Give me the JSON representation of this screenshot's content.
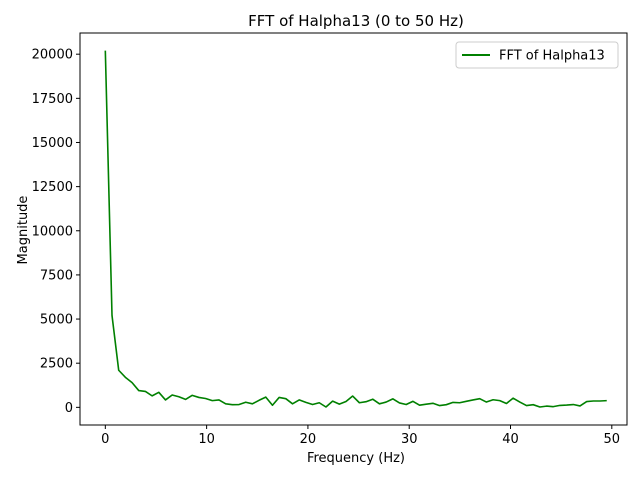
{
  "chart_data": {
    "type": "line",
    "title": "FFT of Halpha13 (0 to 50 Hz)",
    "xlabel": "Frequency (Hz)",
    "ylabel": "Magnitude",
    "xlim": [
      -2.5,
      51.5
    ],
    "ylim": [
      -1000,
      21200
    ],
    "xticks": [
      0,
      10,
      20,
      30,
      40,
      50
    ],
    "yticks": [
      0,
      2500,
      5000,
      7500,
      10000,
      12500,
      15000,
      17500,
      20000
    ],
    "grid": false,
    "legend_position": "top-right",
    "series": [
      {
        "name": "FFT of Halpha13",
        "color": "#008000",
        "x": [
          0,
          0.66,
          1.32,
          1.98,
          2.64,
          3.3,
          3.96,
          4.62,
          5.28,
          5.94,
          6.6,
          7.26,
          7.92,
          8.58,
          9.24,
          9.9,
          10.56,
          11.22,
          11.88,
          12.54,
          13.2,
          13.86,
          14.52,
          15.18,
          15.84,
          16.5,
          17.16,
          17.82,
          18.48,
          19.14,
          19.8,
          20.46,
          21.12,
          21.78,
          22.44,
          23.1,
          23.76,
          24.42,
          25.08,
          25.74,
          26.4,
          27.06,
          27.72,
          28.38,
          29.04,
          29.7,
          30.36,
          31.02,
          31.68,
          32.34,
          33.0,
          33.66,
          34.32,
          34.98,
          35.64,
          36.3,
          36.96,
          37.62,
          38.28,
          38.94,
          39.6,
          40.26,
          40.92,
          41.58,
          42.24,
          42.9,
          43.56,
          44.22,
          44.88,
          45.54,
          46.2,
          46.86,
          47.52,
          48.18,
          48.84,
          49.5
        ],
        "values": [
          20200,
          5200,
          2100,
          1700,
          1400,
          950,
          900,
          650,
          850,
          420,
          700,
          600,
          450,
          680,
          560,
          500,
          380,
          420,
          200,
          150,
          160,
          290,
          200,
          400,
          580,
          120,
          560,
          490,
          200,
          420,
          280,
          160,
          260,
          20,
          350,
          180,
          330,
          640,
          260,
          320,
          460,
          200,
          300,
          480,
          250,
          160,
          340,
          120,
          180,
          230,
          100,
          150,
          280,
          260,
          340,
          420,
          490,
          300,
          430,
          380,
          220,
          520,
          300,
          100,
          150,
          20,
          70,
          40,
          110,
          130,
          160,
          80,
          330,
          360,
          360,
          380
        ]
      }
    ]
  }
}
